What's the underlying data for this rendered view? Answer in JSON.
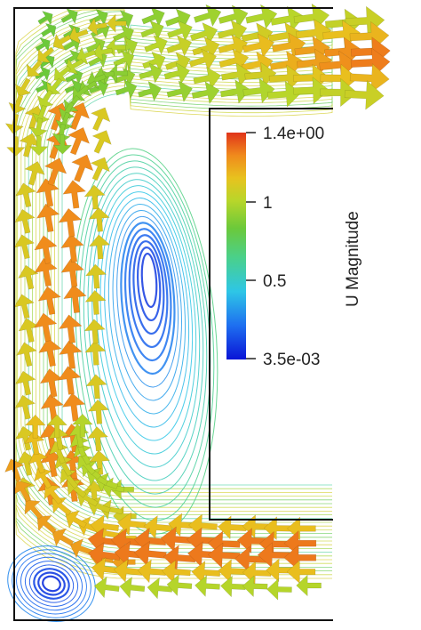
{
  "colorbar": {
    "title": "U Magnitude",
    "max_label": "1.4e+00",
    "min_label": "3.5e-03",
    "tick_labels": [
      "1",
      "0.5"
    ],
    "range": [
      0.0035,
      1.4
    ],
    "ticks": [
      1.0,
      0.5
    ],
    "colormap": [
      "#0a14d6",
      "#1e6ff0",
      "#2ec6e6",
      "#4ad08a",
      "#6cc93a",
      "#b8d62a",
      "#e8c21e",
      "#f08a1c",
      "#e0341a"
    ]
  },
  "colors": {
    "wall": "#111111",
    "background": "#ffffff"
  }
}
